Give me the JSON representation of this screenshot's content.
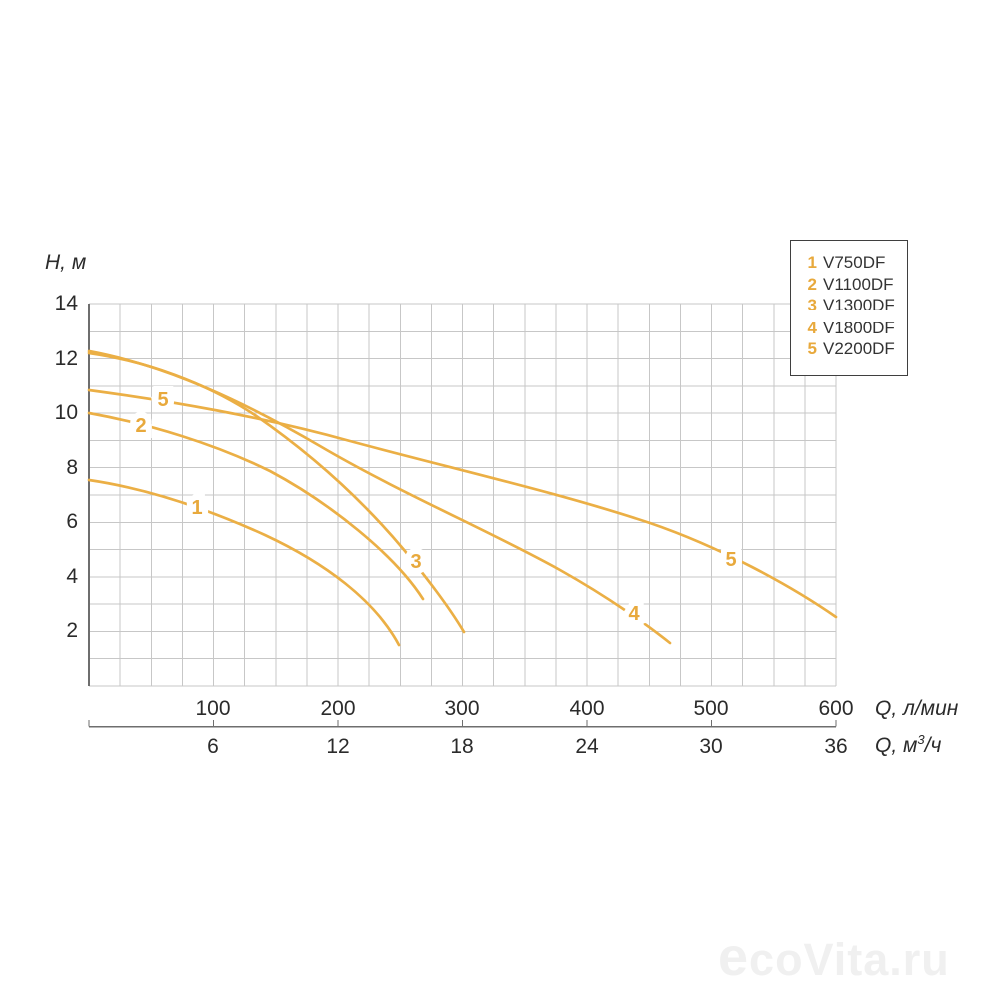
{
  "y_axis": {
    "title": "H, м",
    "ticks": [
      "14",
      "12",
      "10",
      "8",
      "6",
      "4",
      "2"
    ]
  },
  "x_axis_lmin": {
    "ticks": [
      "100",
      "200",
      "300",
      "400",
      "500",
      "600"
    ],
    "unit": "Q, л/мин"
  },
  "x_axis_m3h": {
    "ticks": [
      "6",
      "12",
      "18",
      "24",
      "30",
      "36"
    ],
    "unit_pre": "Q, м",
    "unit_sup": "3",
    "unit_post": "/ч"
  },
  "legend": {
    "items": [
      {
        "num": "1",
        "model": "V750DF"
      },
      {
        "num": "2",
        "model": "V1100DF"
      },
      {
        "num": "3",
        "model": "V1300DF"
      },
      {
        "num": "4",
        "model": "V1800DF"
      },
      {
        "num": "5",
        "model": "V2200DF"
      }
    ]
  },
  "curve_labels": {
    "c1": "1",
    "c2": "2",
    "c3": "3",
    "c4": "4",
    "c5_start": "5",
    "c5_end": "5"
  },
  "watermark": {
    "lead": "e",
    "rest": "coVita.ru"
  },
  "colors": {
    "curve": "#ebaf45",
    "curve_label": "#e8a93c",
    "grid": "#c7c7c7",
    "axis": "#6e6e6e",
    "text": "#2b2b2b",
    "legend_border": "#3f3f3f",
    "watermark": "#f0f0f0"
  },
  "chart_data": {
    "type": "line",
    "title": "",
    "ylabel": "H, м",
    "xlabel_primary": "Q, л/мин",
    "xlabel_secondary": "Q, м³/ч",
    "ylim": [
      0,
      14
    ],
    "xlim_lmin": [
      0,
      600
    ],
    "xlim_m3h": [
      0,
      36
    ],
    "y_ticks": [
      2,
      4,
      6,
      8,
      10,
      12,
      14
    ],
    "x_ticks_lmin": [
      100,
      200,
      300,
      400,
      500,
      600
    ],
    "x_ticks_m3h": [
      6,
      12,
      18,
      24,
      30,
      36
    ],
    "grid": true,
    "grid_minor_step_lmin": 25,
    "grid_minor_step_m": 1,
    "legend_position": "top-right",
    "series": [
      {
        "label": "1",
        "name": "V750DF",
        "points_lmin_m": [
          [
            0,
            7.5
          ],
          [
            50,
            7.2
          ],
          [
            100,
            6.4
          ],
          [
            150,
            5.5
          ],
          [
            200,
            4.2
          ],
          [
            230,
            3.1
          ],
          [
            250,
            1.5
          ]
        ]
      },
      {
        "label": "2",
        "name": "V1100DF",
        "points_lmin_m": [
          [
            0,
            10.0
          ],
          [
            50,
            9.5
          ],
          [
            100,
            8.8
          ],
          [
            150,
            7.7
          ],
          [
            200,
            6.4
          ],
          [
            250,
            4.6
          ],
          [
            268,
            3.2
          ]
        ]
      },
      {
        "label": "3",
        "name": "V1300DF",
        "points_lmin_m": [
          [
            0,
            12.2
          ],
          [
            50,
            11.7
          ],
          [
            100,
            10.8
          ],
          [
            125,
            10.0
          ],
          [
            150,
            9.3
          ],
          [
            200,
            7.6
          ],
          [
            250,
            5.5
          ],
          [
            300,
            2.0
          ]
        ]
      },
      {
        "label": "4",
        "name": "V1800DF",
        "points_lmin_m": [
          [
            0,
            12.2
          ],
          [
            100,
            11.0
          ],
          [
            130,
            10.0
          ],
          [
            200,
            8.5
          ],
          [
            300,
            6.6
          ],
          [
            400,
            3.9
          ],
          [
            467,
            1.6
          ]
        ]
      },
      {
        "label": "5",
        "name": "V2200DF",
        "points_lmin_m": [
          [
            0,
            10.9
          ],
          [
            100,
            10.3
          ],
          [
            200,
            9.1
          ],
          [
            300,
            8.2
          ],
          [
            400,
            6.8
          ],
          [
            500,
            4.9
          ],
          [
            600,
            2.5
          ]
        ]
      }
    ]
  }
}
